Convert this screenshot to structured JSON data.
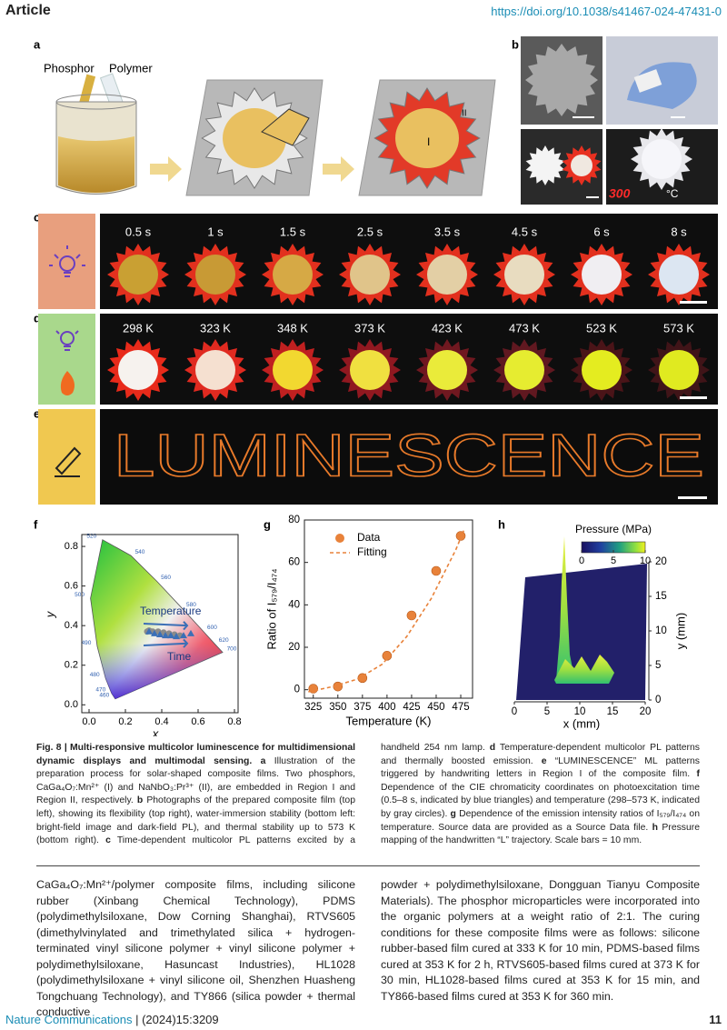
{
  "header": {
    "section": "Article",
    "doi": "https://doi.org/10.1038/s41467-024-47431-0"
  },
  "figure": {
    "a": {
      "label": "a",
      "phosphor": "Phosphor",
      "polymer": "Polymer",
      "region_1": "I",
      "region_2": "II"
    },
    "b": {
      "label": "b",
      "display_value": "300",
      "display_unit": "°C"
    },
    "c": {
      "label": "c",
      "times": [
        "0.5 s",
        "1 s",
        "1.5 s",
        "2.5 s",
        "3.5 s",
        "4.5 s",
        "6 s",
        "8 s"
      ]
    },
    "d": {
      "label": "d",
      "temperatures": [
        "298 K",
        "323 K",
        "348 K",
        "373 K",
        "423 K",
        "473 K",
        "523 K",
        "573 K"
      ]
    },
    "e": {
      "label": "e",
      "text": "LUMINESCENCE"
    },
    "f": {
      "label": "f",
      "type": "scatter",
      "xlabel": "x",
      "ylabel": "y",
      "xlim": [
        -0.04,
        0.82
      ],
      "ylim": [
        -0.04,
        0.86
      ],
      "xticks": [
        {
          "value": 0,
          "label": "0.0"
        },
        0.2,
        0.4,
        0.6,
        0.8
      ],
      "yticks": [
        {
          "value": 0,
          "label": "0.0"
        },
        0.2,
        0.4,
        0.6,
        0.8
      ],
      "annotations": {
        "temperature": "Temperature",
        "time": "Time"
      },
      "spectral_locus": {
        "wavelengths": [
          460,
          470,
          480,
          490,
          500,
          520,
          540,
          560,
          580,
          600,
          620,
          700
        ],
        "x": [
          0.144,
          0.124,
          0.091,
          0.045,
          0.008,
          0.074,
          0.23,
          0.373,
          0.512,
          0.627,
          0.691,
          0.735
        ],
        "y": [
          0.03,
          0.058,
          0.133,
          0.295,
          0.538,
          0.834,
          0.754,
          0.624,
          0.487,
          0.373,
          0.308,
          0.265
        ]
      },
      "time_points": {
        "color": "#3b6fb6",
        "x": [
          0.33,
          0.36,
          0.39,
          0.42,
          0.45,
          0.48,
          0.52,
          0.56
        ],
        "y": [
          0.37,
          0.36,
          0.355,
          0.35,
          0.35,
          0.345,
          0.35,
          0.36
        ]
      },
      "temperature_points": {
        "color": "#8a8a8a",
        "x": [
          0.32,
          0.33,
          0.35,
          0.38,
          0.41,
          0.44,
          0.47,
          0.5
        ],
        "y": [
          0.37,
          0.375,
          0.37,
          0.37,
          0.365,
          0.36,
          0.355,
          0.35
        ]
      }
    },
    "g": {
      "label": "g",
      "type": "scatter",
      "xlabel": "Temperature (K)",
      "ylabel": "Ratio of I₅₇₉/I₄₇₄",
      "xlim": [
        316,
        487
      ],
      "ylim": [
        -4,
        80
      ],
      "xticks": [
        325,
        350,
        375,
        400,
        425,
        450,
        475
      ],
      "yticks": [
        0,
        20,
        40,
        60,
        80
      ],
      "series": [
        {
          "name": "Data",
          "color": "#e8823a",
          "x": [
            325,
            350,
            375,
            400,
            425,
            450,
            475
          ],
          "values": [
            0.5,
            1.5,
            5.5,
            16,
            35,
            56,
            72.5
          ]
        },
        {
          "name": "Fitting",
          "color": "#e8823a",
          "style": "dashed",
          "x": [
            320,
            345,
            370,
            395,
            420,
            445,
            470,
            478
          ],
          "values": [
            -1,
            1.5,
            5,
            12,
            25,
            43,
            66,
            75
          ]
        }
      ]
    },
    "h": {
      "label": "h",
      "colorbar_title": "Pressure (MPa)",
      "colorbar_lim": [
        0,
        10
      ],
      "colorbar_ticks": [
        0,
        5,
        10
      ],
      "xlabel": "x (mm)",
      "ylabel": "y (mm)",
      "xlim": [
        0,
        20
      ],
      "xticks": [
        0,
        5,
        10,
        15,
        20
      ],
      "ylim": [
        0,
        20
      ],
      "yticks": [
        0,
        5,
        10,
        15,
        20
      ]
    }
  },
  "caption": {
    "runs": [
      {
        "text": "Fig. 8 | Multi-responsive multicolor luminescence for multidimensional dynamic displays and multimodal sensing.",
        "bold": true
      },
      {
        "text": " a",
        "bold": true
      },
      {
        "text": " Illustration of the preparation process for solar-shaped composite films. Two phosphors, CaGa₄O₇:Mn²⁺ (I) and NaNbO₃:Pr³⁺ (II), are embedded in Region I and Region II, respectively. ",
        "bold": false
      },
      {
        "text": "b",
        "bold": true
      },
      {
        "text": " Photographs of the prepared composite film (top left), showing its flexibility (top right), water-immersion stability (bottom left: bright-field image and dark-field PL), and thermal stability up to 573 K (bottom right). ",
        "bold": false
      },
      {
        "text": "c",
        "bold": true
      },
      {
        "text": " Time-dependent multicolor PL patterns excited by a handheld 254 nm lamp. ",
        "bold": false
      },
      {
        "text": "d",
        "bold": true
      },
      {
        "text": " Temperature-dependent multicolor PL patterns and thermally boosted emission. ",
        "bold": false
      },
      {
        "text": "e",
        "bold": true
      },
      {
        "text": " “LUMINESCENCE” ML patterns triggered by handwriting letters in Region I of the composite film. ",
        "bold": false
      },
      {
        "text": "f",
        "bold": true
      },
      {
        "text": " Dependence of the CIE chromaticity coordinates on photoexcitation time (0.5–8 s, indicated by blue triangles) and temperature (298–573 K, indicated by gray circles). ",
        "bold": false
      },
      {
        "text": "g",
        "bold": true
      },
      {
        "text": " Dependence of the emission intensity ratios of I₅₇₉/I₄₇₄ on temperature. Source data are provided as a Source Data file. ",
        "bold": false
      },
      {
        "text": "h",
        "bold": true
      },
      {
        "text": " Pressure mapping of the handwritten “L” trajectory. Scale bars = 10 mm.",
        "bold": false
      }
    ]
  },
  "body": {
    "columns": [
      "CaGa₄O₇:Mn²⁺/polymer composite films, including silicone rubber (Xinbang Chemical Technology), PDMS (polydimethylsiloxane, Dow Corning Shanghai), RTVS605 (dimethylvinylated and trimethylated silica + hydrogen-terminated vinyl silicone polymer + vinyl silicone polymer + polydimethylsiloxane, Hasuncast Industries), HL1028 (polydimethylsiloxane + vinyl silicone oil, Shenzhen Huasheng Tongchuang Technology), and TY866 (silica powder + thermal conductive",
      "powder + polydimethylsiloxane, Dongguan Tianyu Composite Materials). The phosphor microparticles were incorporated into the organic polymers at a weight ratio of 2:1. The curing conditions for these composite films were as follows: silicone rubber-based film cured at 333 K for 10 min, PDMS-based films cured at 353 K for 2 h, RTVS605-based films cured at 373 K for 30 min, HL1028-based films cured at 353 K for 15 min, and TY866-based films cured at 353 K for 360 min."
    ]
  },
  "footer": {
    "journal": "Nature Communications",
    "citation": "| (2024)15:3209",
    "page": "11"
  }
}
